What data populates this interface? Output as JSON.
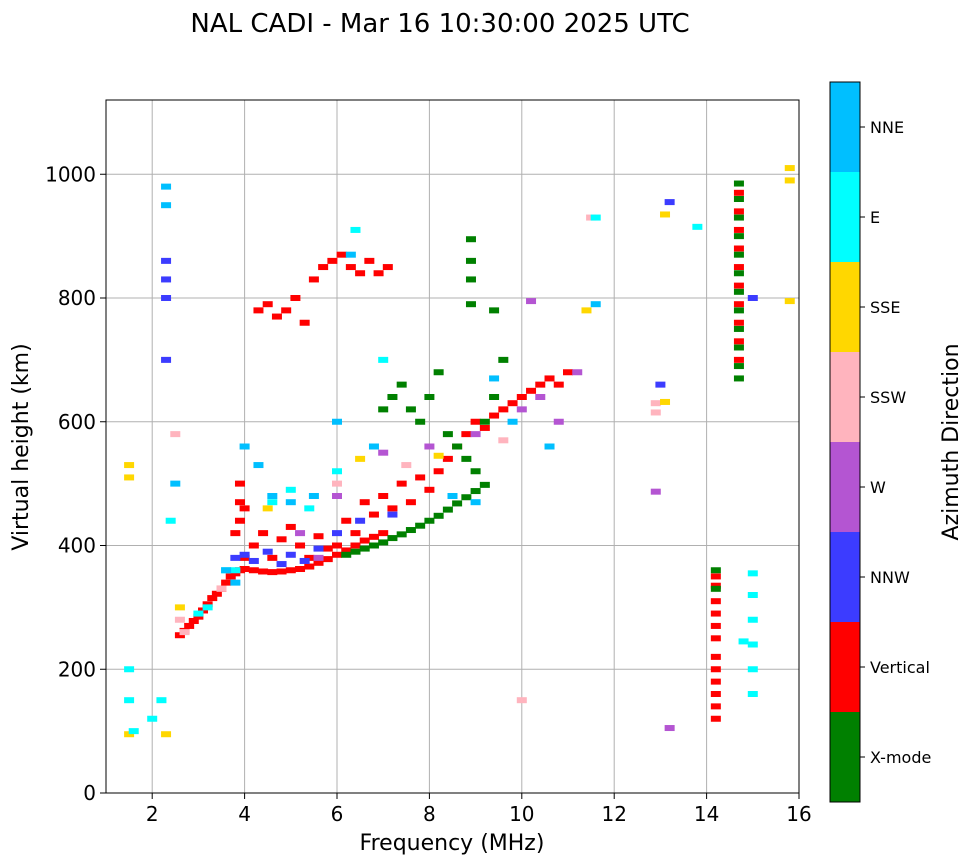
{
  "chart_data": {
    "type": "scatter",
    "title": "NAL CADI - Mar 16 10:30:00 2025 UTC",
    "xlabel": "Frequency (MHz)",
    "ylabel": "Virtual height (km)",
    "xlim": [
      1,
      16
    ],
    "ylim": [
      0,
      1120
    ],
    "xticks": [
      2,
      4,
      6,
      8,
      10,
      12,
      14,
      16
    ],
    "yticks": [
      0,
      200,
      400,
      600,
      800,
      1000
    ],
    "grid": true,
    "colorbar": {
      "label": "Azimuth Direction",
      "categories": [
        {
          "name": "X-mode",
          "color": "#008000"
        },
        {
          "name": "Vertical",
          "color": "#ff0000"
        },
        {
          "name": "NNW",
          "color": "#3c3cff"
        },
        {
          "name": "W",
          "color": "#b455d2"
        },
        {
          "name": "SSW",
          "color": "#ffb4be"
        },
        {
          "name": "SSE",
          "color": "#ffd700"
        },
        {
          "name": "E",
          "color": "#00ffff"
        },
        {
          "name": "NNE",
          "color": "#00bfff"
        }
      ]
    },
    "series": [
      {
        "name": "Vertical",
        "points": [
          [
            2.6,
            255
          ],
          [
            2.7,
            262
          ],
          [
            2.8,
            270
          ],
          [
            2.9,
            278
          ],
          [
            3.0,
            285
          ],
          [
            3.1,
            295
          ],
          [
            3.2,
            305
          ],
          [
            3.3,
            315
          ],
          [
            3.4,
            322
          ],
          [
            3.5,
            330
          ],
          [
            3.6,
            340
          ],
          [
            3.7,
            350
          ],
          [
            3.8,
            355
          ],
          [
            3.9,
            360
          ],
          [
            4.0,
            362
          ],
          [
            4.2,
            360
          ],
          [
            4.4,
            358
          ],
          [
            4.6,
            357
          ],
          [
            4.8,
            358
          ],
          [
            5.0,
            360
          ],
          [
            5.2,
            362
          ],
          [
            5.4,
            366
          ],
          [
            5.6,
            372
          ],
          [
            5.8,
            378
          ],
          [
            6.0,
            385
          ],
          [
            6.2,
            392
          ],
          [
            6.4,
            400
          ],
          [
            6.6,
            408
          ],
          [
            6.8,
            414
          ],
          [
            7.0,
            420
          ],
          [
            3.8,
            420
          ],
          [
            3.9,
            440
          ],
          [
            3.9,
            470
          ],
          [
            3.9,
            500
          ],
          [
            4.0,
            460
          ],
          [
            4.0,
            380
          ],
          [
            4.2,
            400
          ],
          [
            4.4,
            420
          ],
          [
            4.6,
            380
          ],
          [
            4.8,
            410
          ],
          [
            5.0,
            430
          ],
          [
            5.2,
            400
          ],
          [
            5.4,
            380
          ],
          [
            5.6,
            415
          ],
          [
            5.8,
            395
          ],
          [
            6.0,
            400
          ],
          [
            6.2,
            440
          ],
          [
            6.4,
            420
          ],
          [
            6.6,
            470
          ],
          [
            6.8,
            450
          ],
          [
            7.0,
            480
          ],
          [
            7.2,
            460
          ],
          [
            7.4,
            500
          ],
          [
            7.6,
            470
          ],
          [
            7.8,
            510
          ],
          [
            8.0,
            490
          ],
          [
            8.2,
            520
          ],
          [
            8.4,
            540
          ],
          [
            8.6,
            560
          ],
          [
            8.8,
            580
          ],
          [
            9.0,
            600
          ],
          [
            9.2,
            590
          ],
          [
            9.4,
            610
          ],
          [
            9.6,
            620
          ],
          [
            9.8,
            630
          ],
          [
            10.0,
            640
          ],
          [
            10.2,
            650
          ],
          [
            10.4,
            660
          ],
          [
            10.6,
            670
          ],
          [
            10.8,
            660
          ],
          [
            11.0,
            680
          ],
          [
            4.3,
            780
          ],
          [
            4.5,
            790
          ],
          [
            4.7,
            770
          ],
          [
            4.9,
            780
          ],
          [
            5.1,
            800
          ],
          [
            5.3,
            760
          ],
          [
            5.5,
            830
          ],
          [
            5.7,
            850
          ],
          [
            5.9,
            860
          ],
          [
            6.1,
            870
          ],
          [
            6.3,
            850
          ],
          [
            6.5,
            840
          ],
          [
            6.7,
            860
          ],
          [
            6.9,
            840
          ],
          [
            7.1,
            850
          ],
          [
            14.2,
            120
          ],
          [
            14.2,
            140
          ],
          [
            14.2,
            160
          ],
          [
            14.2,
            180
          ],
          [
            14.2,
            200
          ],
          [
            14.2,
            220
          ],
          [
            14.2,
            250
          ],
          [
            14.2,
            270
          ],
          [
            14.2,
            290
          ],
          [
            14.2,
            310
          ],
          [
            14.2,
            335
          ],
          [
            14.2,
            350
          ],
          [
            14.7,
            700
          ],
          [
            14.7,
            730
          ],
          [
            14.7,
            760
          ],
          [
            14.7,
            790
          ],
          [
            14.7,
            820
          ],
          [
            14.7,
            850
          ],
          [
            14.7,
            880
          ],
          [
            14.7,
            910
          ],
          [
            14.7,
            940
          ],
          [
            14.7,
            970
          ]
        ]
      },
      {
        "name": "X-mode",
        "points": [
          [
            6.2,
            385
          ],
          [
            6.4,
            390
          ],
          [
            6.6,
            395
          ],
          [
            6.8,
            400
          ],
          [
            7.0,
            405
          ],
          [
            7.2,
            412
          ],
          [
            7.4,
            418
          ],
          [
            7.6,
            425
          ],
          [
            7.8,
            432
          ],
          [
            8.0,
            440
          ],
          [
            8.2,
            448
          ],
          [
            8.4,
            458
          ],
          [
            8.6,
            468
          ],
          [
            8.8,
            478
          ],
          [
            9.0,
            488
          ],
          [
            9.2,
            498
          ],
          [
            7.0,
            620
          ],
          [
            7.2,
            640
          ],
          [
            7.4,
            660
          ],
          [
            7.6,
            620
          ],
          [
            7.8,
            600
          ],
          [
            8.0,
            640
          ],
          [
            8.2,
            680
          ],
          [
            8.4,
            580
          ],
          [
            8.6,
            560
          ],
          [
            8.8,
            540
          ],
          [
            9.0,
            520
          ],
          [
            9.2,
            600
          ],
          [
            9.4,
            640
          ],
          [
            9.6,
            700
          ],
          [
            9.4,
            780
          ],
          [
            8.9,
            790
          ],
          [
            8.9,
            830
          ],
          [
            8.9,
            860
          ],
          [
            8.9,
            895
          ],
          [
            14.2,
            330
          ],
          [
            14.2,
            360
          ],
          [
            14.7,
            670
          ],
          [
            14.7,
            690
          ],
          [
            14.7,
            720
          ],
          [
            14.7,
            750
          ],
          [
            14.7,
            780
          ],
          [
            14.7,
            810
          ],
          [
            14.7,
            840
          ],
          [
            14.7,
            870
          ],
          [
            14.7,
            900
          ],
          [
            14.7,
            930
          ],
          [
            14.7,
            960
          ],
          [
            14.7,
            985
          ]
        ]
      },
      {
        "name": "NNW",
        "points": [
          [
            2.3,
            800
          ],
          [
            2.3,
            830
          ],
          [
            2.3,
            860
          ],
          [
            2.3,
            700
          ],
          [
            3.8,
            380
          ],
          [
            4.0,
            385
          ],
          [
            4.2,
            375
          ],
          [
            4.5,
            390
          ],
          [
            4.8,
            370
          ],
          [
            5.0,
            385
          ],
          [
            5.3,
            375
          ],
          [
            5.6,
            395
          ],
          [
            6.0,
            420
          ],
          [
            6.5,
            440
          ],
          [
            7.2,
            450
          ],
          [
            13.0,
            660
          ],
          [
            13.2,
            955
          ],
          [
            15.0,
            800
          ]
        ]
      },
      {
        "name": "W",
        "points": [
          [
            5.2,
            420
          ],
          [
            6.0,
            480
          ],
          [
            7.0,
            550
          ],
          [
            8.0,
            560
          ],
          [
            9.0,
            580
          ],
          [
            10.0,
            620
          ],
          [
            10.4,
            640
          ],
          [
            10.8,
            600
          ],
          [
            11.2,
            680
          ],
          [
            12.9,
            487
          ],
          [
            13.2,
            105
          ],
          [
            10.2,
            795
          ],
          [
            5.6,
            380
          ]
        ]
      },
      {
        "name": "SSW",
        "points": [
          [
            2.5,
            580
          ],
          [
            2.7,
            260
          ],
          [
            2.6,
            280
          ],
          [
            3.5,
            330
          ],
          [
            6.0,
            500
          ],
          [
            7.5,
            530
          ],
          [
            9.6,
            570
          ],
          [
            12.9,
            630
          ],
          [
            12.9,
            615
          ],
          [
            11.5,
            930
          ],
          [
            10.0,
            150
          ]
        ]
      },
      {
        "name": "SSE",
        "points": [
          [
            1.5,
            95
          ],
          [
            1.5,
            510
          ],
          [
            1.5,
            530
          ],
          [
            2.3,
            95
          ],
          [
            2.6,
            300
          ],
          [
            4.5,
            460
          ],
          [
            6.5,
            540
          ],
          [
            8.2,
            545
          ],
          [
            11.4,
            780
          ],
          [
            13.1,
            632
          ],
          [
            13.1,
            935
          ],
          [
            15.8,
            990
          ],
          [
            15.8,
            1010
          ],
          [
            15.8,
            795
          ]
        ]
      },
      {
        "name": "E",
        "points": [
          [
            1.5,
            150
          ],
          [
            1.5,
            200
          ],
          [
            1.6,
            100
          ],
          [
            2.0,
            120
          ],
          [
            2.2,
            150
          ],
          [
            2.4,
            440
          ],
          [
            3.0,
            290
          ],
          [
            3.2,
            300
          ],
          [
            3.6,
            360
          ],
          [
            3.8,
            360
          ],
          [
            4.6,
            470
          ],
          [
            5.0,
            490
          ],
          [
            5.4,
            460
          ],
          [
            6.0,
            520
          ],
          [
            6.4,
            910
          ],
          [
            7.0,
            700
          ],
          [
            15.0,
            160
          ],
          [
            15.0,
            200
          ],
          [
            15.0,
            240
          ],
          [
            15.0,
            280
          ],
          [
            15.0,
            320
          ],
          [
            15.0,
            355
          ],
          [
            14.8,
            245
          ],
          [
            11.6,
            930
          ],
          [
            13.8,
            915
          ]
        ]
      },
      {
        "name": "NNE",
        "points": [
          [
            2.3,
            950
          ],
          [
            2.3,
            980
          ],
          [
            2.5,
            500
          ],
          [
            3.6,
            360
          ],
          [
            3.8,
            340
          ],
          [
            4.0,
            560
          ],
          [
            4.3,
            530
          ],
          [
            4.6,
            480
          ],
          [
            5.0,
            470
          ],
          [
            5.5,
            480
          ],
          [
            6.0,
            600
          ],
          [
            6.3,
            870
          ],
          [
            6.8,
            560
          ],
          [
            8.5,
            480
          ],
          [
            9.0,
            470
          ],
          [
            9.4,
            670
          ],
          [
            9.8,
            600
          ],
          [
            10.6,
            560
          ],
          [
            11.6,
            790
          ]
        ]
      }
    ]
  }
}
